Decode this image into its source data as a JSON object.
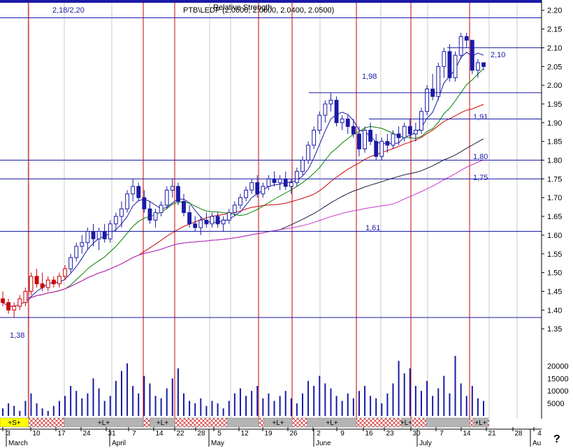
{
  "chart_data": {
    "type": "candlestick",
    "title": "Relative Strength",
    "title_overlay": "PTB\\LEDP (2.0600, 2.0600, 2.0400, 2.0500)",
    "top_left_label": "2,18/2,20",
    "ylim": [
      1.3,
      2.22
    ],
    "yticks": [
      "2.20",
      "2.15",
      "2.10",
      "2.05",
      "2.00",
      "1.95",
      "1.90",
      "1.85",
      "1.80",
      "1.75",
      "1.70",
      "1.65",
      "1.60",
      "1.55",
      "1.50",
      "1.45",
      "1.40",
      "1.35"
    ],
    "ytick_values": [
      2.2,
      2.15,
      2.1,
      2.05,
      2.0,
      1.95,
      1.9,
      1.85,
      1.8,
      1.75,
      1.7,
      1.65,
      1.6,
      1.55,
      1.5,
      1.45,
      1.4,
      1.35
    ],
    "volume_ticks": [
      "20000",
      "15000",
      "10000",
      "5000"
    ],
    "volume_tick_values": [
      20000,
      15000,
      10000,
      5000
    ],
    "volume_max": 24000,
    "xticks": [
      "3",
      "10",
      "17",
      "24",
      "31",
      "7",
      "14",
      "22",
      "28",
      "5",
      "12",
      "19",
      "26",
      "2",
      "9",
      "16",
      "23",
      "30",
      "7",
      "14",
      "21",
      "28",
      "4"
    ],
    "months": [
      "March",
      "April",
      "May",
      "June",
      "July",
      "Au"
    ],
    "corner_mark": "?",
    "hlines": [
      {
        "value": 2.18,
        "label": ""
      },
      {
        "value": 2.1,
        "label": "2,10"
      },
      {
        "value": 1.98,
        "label": "1,98"
      },
      {
        "value": 1.91,
        "label": "1,91"
      },
      {
        "value": 1.8,
        "label": "1,80"
      },
      {
        "value": 1.75,
        "label": "1,75"
      },
      {
        "value": 1.61,
        "label": "1,61"
      },
      {
        "value": 1.38,
        "label": "1,38"
      }
    ],
    "bands": [
      {
        "text": "+S+",
        "style": "yellow"
      },
      {
        "text": "",
        "style": "hatch"
      },
      {
        "text": "+L+",
        "style": "gray"
      },
      {
        "text": "",
        "style": "hatch"
      },
      {
        "text": "+L+",
        "style": "gray"
      },
      {
        "text": "",
        "style": "hatch"
      },
      {
        "text": "",
        "style": "gray"
      },
      {
        "text": "",
        "style": "hatch"
      },
      {
        "text": "+L+",
        "style": "gray"
      },
      {
        "text": "",
        "style": "hatch"
      },
      {
        "text": "+L+",
        "style": "gray"
      },
      {
        "text": "",
        "style": "hatch"
      },
      {
        "text": "+L+",
        "style": "gray"
      },
      {
        "text": "",
        "style": "hatch"
      },
      {
        "text": "",
        "style": "gray"
      },
      {
        "text": "",
        "style": "hatch"
      },
      {
        "text": "+L+",
        "style": "gray"
      },
      {
        "text": "",
        "style": "hatch"
      }
    ],
    "candles": [
      [
        1.43,
        1.45,
        1.41,
        1.42
      ],
      [
        1.42,
        1.43,
        1.39,
        1.4
      ],
      [
        1.4,
        1.42,
        1.38,
        1.41
      ],
      [
        1.41,
        1.44,
        1.4,
        1.43
      ],
      [
        1.42,
        1.46,
        1.41,
        1.45
      ],
      [
        1.45,
        1.5,
        1.44,
        1.49
      ],
      [
        1.49,
        1.51,
        1.46,
        1.47
      ],
      [
        1.47,
        1.5,
        1.45,
        1.46
      ],
      [
        1.46,
        1.49,
        1.45,
        1.48
      ],
      [
        1.48,
        1.49,
        1.46,
        1.47
      ],
      [
        1.47,
        1.5,
        1.46,
        1.49
      ],
      [
        1.49,
        1.52,
        1.48,
        1.51
      ],
      [
        1.51,
        1.55,
        1.5,
        1.54
      ],
      [
        1.54,
        1.58,
        1.53,
        1.57
      ],
      [
        1.57,
        1.6,
        1.55,
        1.58
      ],
      [
        1.58,
        1.62,
        1.56,
        1.61
      ],
      [
        1.61,
        1.63,
        1.57,
        1.59
      ],
      [
        1.59,
        1.62,
        1.56,
        1.61
      ],
      [
        1.61,
        1.63,
        1.58,
        1.59
      ],
      [
        1.59,
        1.64,
        1.58,
        1.63
      ],
      [
        1.63,
        1.66,
        1.61,
        1.65
      ],
      [
        1.65,
        1.69,
        1.62,
        1.67
      ],
      [
        1.67,
        1.72,
        1.66,
        1.71
      ],
      [
        1.71,
        1.75,
        1.69,
        1.73
      ],
      [
        1.73,
        1.74,
        1.69,
        1.7
      ],
      [
        1.7,
        1.72,
        1.66,
        1.67
      ],
      [
        1.67,
        1.69,
        1.63,
        1.64
      ],
      [
        1.64,
        1.67,
        1.62,
        1.66
      ],
      [
        1.66,
        1.69,
        1.65,
        1.68
      ],
      [
        1.68,
        1.73,
        1.67,
        1.72
      ],
      [
        1.72,
        1.75,
        1.7,
        1.73
      ],
      [
        1.73,
        1.74,
        1.68,
        1.69
      ],
      [
        1.69,
        1.71,
        1.65,
        1.66
      ],
      [
        1.66,
        1.68,
        1.62,
        1.63
      ],
      [
        1.63,
        1.65,
        1.61,
        1.62
      ],
      [
        1.62,
        1.65,
        1.6,
        1.64
      ],
      [
        1.64,
        1.66,
        1.62,
        1.63
      ],
      [
        1.63,
        1.66,
        1.62,
        1.65
      ],
      [
        1.65,
        1.66,
        1.62,
        1.63
      ],
      [
        1.63,
        1.65,
        1.61,
        1.64
      ],
      [
        1.64,
        1.67,
        1.63,
        1.66
      ],
      [
        1.66,
        1.69,
        1.65,
        1.68
      ],
      [
        1.68,
        1.71,
        1.67,
        1.7
      ],
      [
        1.7,
        1.73,
        1.69,
        1.72
      ],
      [
        1.72,
        1.75,
        1.71,
        1.74
      ],
      [
        1.74,
        1.76,
        1.7,
        1.71
      ],
      [
        1.71,
        1.74,
        1.7,
        1.73
      ],
      [
        1.73,
        1.76,
        1.72,
        1.75
      ],
      [
        1.75,
        1.77,
        1.73,
        1.74
      ],
      [
        1.74,
        1.76,
        1.72,
        1.75
      ],
      [
        1.75,
        1.77,
        1.72,
        1.73
      ],
      [
        1.73,
        1.75,
        1.71,
        1.74
      ],
      [
        1.74,
        1.78,
        1.73,
        1.77
      ],
      [
        1.77,
        1.81,
        1.76,
        1.8
      ],
      [
        1.8,
        1.85,
        1.79,
        1.84
      ],
      [
        1.84,
        1.89,
        1.83,
        1.88
      ],
      [
        1.88,
        1.93,
        1.87,
        1.92
      ],
      [
        1.92,
        1.96,
        1.9,
        1.95
      ],
      [
        1.95,
        1.98,
        1.93,
        1.96
      ],
      [
        1.96,
        1.97,
        1.89,
        1.9
      ],
      [
        1.9,
        1.92,
        1.88,
        1.91
      ],
      [
        1.91,
        1.92,
        1.87,
        1.89
      ],
      [
        1.89,
        1.91,
        1.86,
        1.87
      ],
      [
        1.87,
        1.89,
        1.81,
        1.83
      ],
      [
        1.83,
        1.89,
        1.82,
        1.88
      ],
      [
        1.88,
        1.9,
        1.84,
        1.85
      ],
      [
        1.85,
        1.87,
        1.8,
        1.81
      ],
      [
        1.81,
        1.86,
        1.8,
        1.85
      ],
      [
        1.85,
        1.87,
        1.82,
        1.84
      ],
      [
        1.84,
        1.88,
        1.83,
        1.87
      ],
      [
        1.87,
        1.89,
        1.84,
        1.86
      ],
      [
        1.86,
        1.9,
        1.85,
        1.89
      ],
      [
        1.89,
        1.91,
        1.86,
        1.87
      ],
      [
        1.87,
        1.9,
        1.85,
        1.88
      ],
      [
        1.88,
        1.94,
        1.87,
        1.93
      ],
      [
        1.93,
        2.0,
        1.92,
        1.99
      ],
      [
        1.99,
        2.03,
        1.96,
        1.97
      ],
      [
        1.97,
        2.06,
        1.96,
        2.05
      ],
      [
        2.05,
        2.1,
        2.02,
        2.09
      ],
      [
        2.09,
        2.11,
        2.01,
        2.02
      ],
      [
        2.02,
        2.09,
        2.01,
        2.08
      ],
      [
        2.08,
        2.14,
        2.07,
        2.13
      ],
      [
        2.13,
        2.14,
        2.1,
        2.12
      ],
      [
        2.12,
        2.12,
        2.03,
        2.04
      ],
      [
        2.04,
        2.07,
        2.02,
        2.06
      ],
      [
        2.06,
        2.06,
        2.04,
        2.05
      ]
    ],
    "volume": [
      3000,
      5000,
      4000,
      2000,
      6000,
      9000,
      5000,
      3000,
      2000,
      4000,
      6000,
      8000,
      12000,
      10000,
      7000,
      9000,
      15000,
      11000,
      6000,
      8000,
      14000,
      18000,
      21000,
      12000,
      9000,
      16000,
      13000,
      8000,
      7000,
      11000,
      15000,
      19000,
      9000,
      6000,
      5000,
      7000,
      4000,
      6000,
      5000,
      3000,
      6000,
      9000,
      11000,
      8000,
      10000,
      12000,
      7000,
      9000,
      6000,
      8000,
      10000,
      7000,
      5000,
      9000,
      14000,
      12000,
      16000,
      13000,
      11000,
      8000,
      6000,
      9000,
      7000,
      10000,
      12000,
      8000,
      7000,
      5000,
      9000,
      13000,
      22000,
      17000,
      19000,
      12000,
      10000,
      14000,
      8000,
      11000,
      16000,
      9000,
      24000,
      13000,
      8000,
      12000,
      7000,
      6000
    ]
  }
}
